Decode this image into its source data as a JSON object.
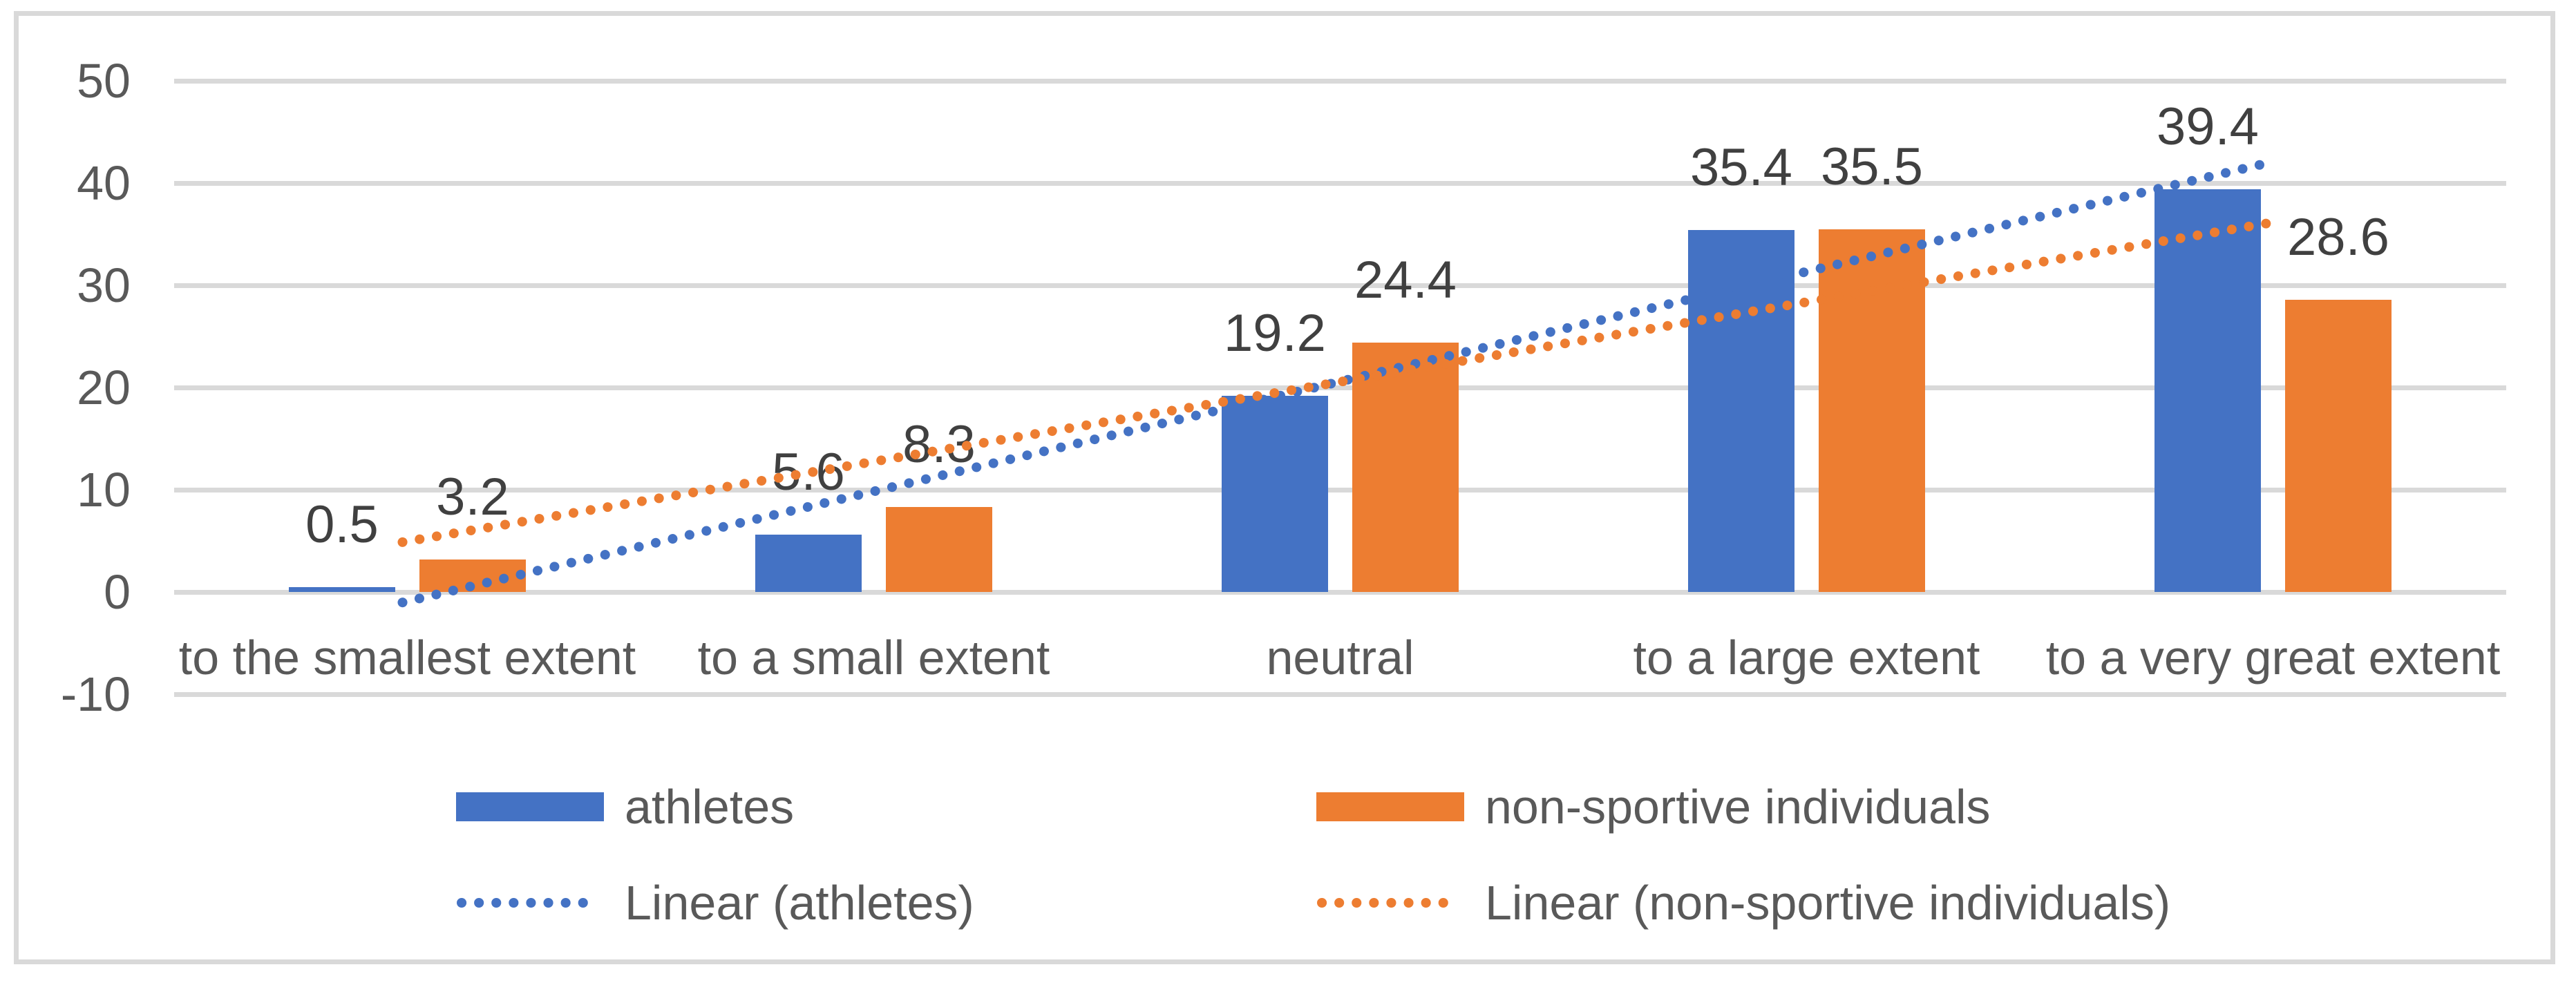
{
  "chart_data": {
    "type": "bar",
    "title": "",
    "xlabel": "",
    "ylabel": "",
    "categories": [
      "to the smallest extent",
      "to a small extent",
      "neutral",
      "to a large extent",
      "to a very great extent"
    ],
    "series": [
      {
        "name": "athletes",
        "color": "#4472C4",
        "values": [
          0.5,
          5.6,
          19.2,
          35.4,
          39.4
        ]
      },
      {
        "name": "non-sportive individuals",
        "color": "#ED7D31",
        "values": [
          3.2,
          8.3,
          24.4,
          35.5,
          28.6
        ]
      }
    ],
    "trendlines": [
      {
        "name": "Linear (athletes)",
        "color": "#4472C4",
        "style": "dotted",
        "start_value": -1.5,
        "end_value": 41.5
      },
      {
        "name": "Linear (non-sportive individuals)",
        "color": "#ED7D31",
        "style": "dotted",
        "start_value": 4.4,
        "end_value": 35.6
      }
    ],
    "y_ticks": [
      50,
      40,
      30,
      20,
      10,
      0,
      -10
    ],
    "ylim": [
      -10,
      50
    ],
    "grid": true,
    "legend_position": "bottom",
    "legend": {
      "row1": [
        {
          "swatch": "solid",
          "color": "#4472C4",
          "label": "athletes"
        },
        {
          "swatch": "solid",
          "color": "#ED7D31",
          "label": "non-sportive individuals"
        }
      ],
      "row2": [
        {
          "swatch": "dotted",
          "color": "#4472C4",
          "label": "Linear (athletes)"
        },
        {
          "swatch": "dotted",
          "color": "#ED7D31",
          "label": "Linear (non-sportive individuals)"
        }
      ]
    },
    "colors": {
      "gridline": "#d9d9d9",
      "frame_border": "#d9d9d9",
      "axis_text": "#595959",
      "data_label_text": "#404040",
      "background": "#ffffff"
    }
  }
}
